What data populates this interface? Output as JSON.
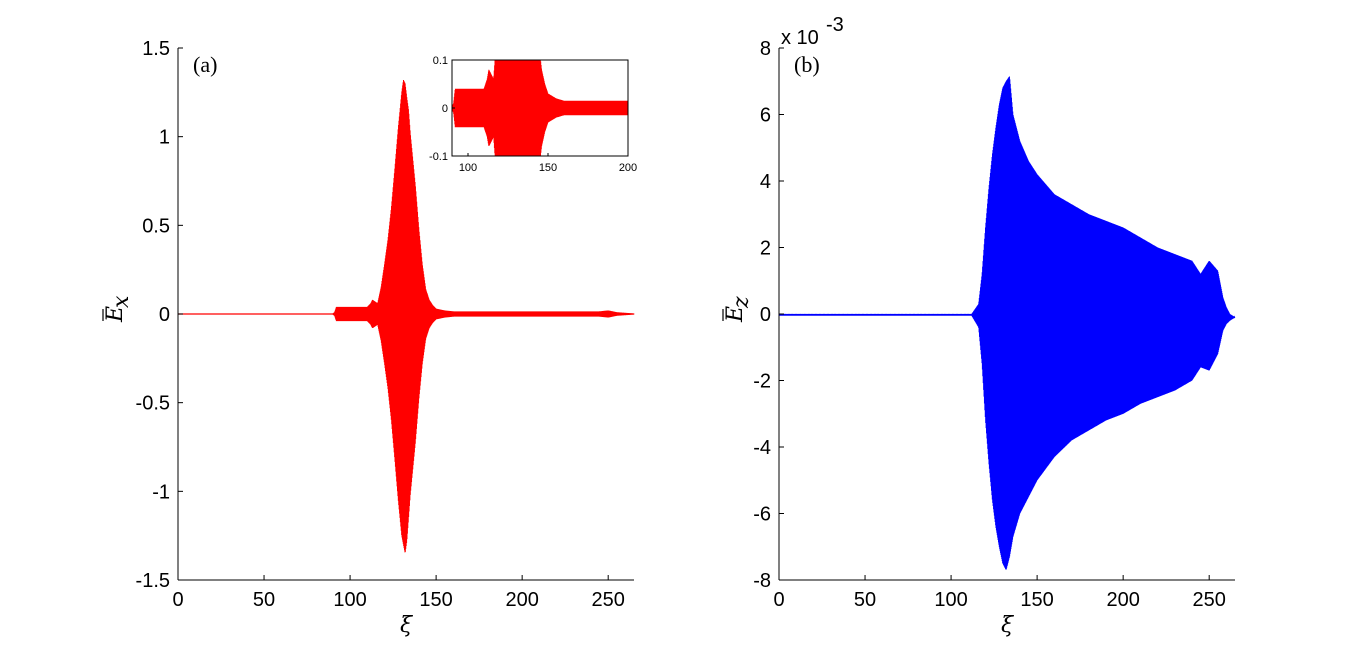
{
  "chart_data": [
    {
      "type": "line",
      "panel_label": "(a)",
      "xlabel": "ξ",
      "ylabel_base": "E",
      "ylabel_sub": "x",
      "xlim": [
        0,
        265
      ],
      "ylim": [
        -1.5,
        1.5
      ],
      "xticks": [
        0,
        50,
        100,
        150,
        200,
        250
      ],
      "yticks": [
        -1.5,
        -1,
        -0.5,
        0,
        0.5,
        1,
        1.5
      ],
      "ytick_labels": [
        "-1.5",
        "-1",
        "-0.5",
        "0",
        "0.5",
        "1",
        "1.5"
      ],
      "color": "#ff0000",
      "envelope": {
        "x": [
          0,
          90,
          91,
          92,
          110,
          112,
          113,
          116,
          118,
          120,
          122,
          124,
          126,
          128,
          130,
          131,
          132,
          133,
          134,
          135,
          136,
          138,
          140,
          142,
          144,
          146,
          148,
          150,
          155,
          160,
          200,
          245,
          250,
          255,
          265
        ],
        "ymax": [
          0.003,
          0.003,
          0.01,
          0.04,
          0.04,
          0.06,
          0.08,
          0.06,
          0.15,
          0.28,
          0.42,
          0.6,
          0.82,
          1.05,
          1.25,
          1.32,
          1.3,
          1.22,
          1.15,
          1.02,
          0.92,
          0.72,
          0.48,
          0.28,
          0.14,
          0.08,
          0.05,
          0.03,
          0.02,
          0.015,
          0.015,
          0.015,
          0.02,
          0.01,
          0.003
        ],
        "ymin": [
          -0.003,
          -0.003,
          -0.01,
          -0.04,
          -0.04,
          -0.06,
          -0.08,
          -0.06,
          -0.15,
          -0.28,
          -0.42,
          -0.6,
          -0.82,
          -1.05,
          -1.25,
          -1.3,
          -1.35,
          -1.28,
          -1.15,
          -1.02,
          -0.92,
          -0.72,
          -0.48,
          -0.28,
          -0.14,
          -0.08,
          -0.05,
          -0.03,
          -0.02,
          -0.015,
          -0.015,
          -0.015,
          -0.02,
          -0.01,
          -0.003
        ]
      },
      "inset": {
        "xlim": [
          90,
          200
        ],
        "ylim": [
          -0.1,
          0.1
        ],
        "xticks": [
          100,
          150,
          200
        ],
        "yticks": [
          -0.1,
          0,
          0.1
        ],
        "ytick_labels": [
          "-0.1",
          "0",
          "0.1"
        ]
      }
    },
    {
      "type": "line",
      "panel_label": "(b)",
      "xlabel": "ξ",
      "ylabel_base": "E",
      "ylabel_sub": "z",
      "scale_note": "x 10",
      "scale_exp": "-3",
      "xlim": [
        0,
        265
      ],
      "ylim": [
        -8,
        8
      ],
      "xticks": [
        0,
        50,
        100,
        150,
        200,
        250
      ],
      "yticks": [
        -8,
        -6,
        -4,
        -2,
        0,
        2,
        4,
        6,
        8
      ],
      "ytick_labels": [
        "-8",
        "-6",
        "-4",
        "-2",
        "0",
        "2",
        "4",
        "6",
        "8"
      ],
      "color": "#0000ff",
      "envelope": {
        "x": [
          0,
          100,
          112,
          116,
          118,
          120,
          122,
          124,
          126,
          128,
          130,
          132,
          134,
          136,
          140,
          145,
          150,
          160,
          170,
          180,
          190,
          200,
          210,
          220,
          230,
          240,
          245,
          250,
          255,
          258,
          260,
          262,
          265
        ],
        "ymax": [
          0.0,
          0.0,
          0.0,
          0.3,
          1.2,
          2.6,
          3.8,
          4.8,
          5.6,
          6.3,
          6.8,
          7.0,
          7.15,
          6.0,
          5.2,
          4.6,
          4.2,
          3.6,
          3.3,
          3.0,
          2.8,
          2.6,
          2.3,
          2.0,
          1.8,
          1.6,
          1.2,
          1.6,
          1.3,
          0.5,
          0.2,
          0.0,
          -0.1
        ],
        "ymin": [
          -0.05,
          -0.05,
          -0.05,
          -0.4,
          -1.5,
          -3.2,
          -4.5,
          -5.6,
          -6.4,
          -7.0,
          -7.5,
          -7.7,
          -7.3,
          -6.7,
          -6.0,
          -5.5,
          -5.0,
          -4.3,
          -3.8,
          -3.5,
          -3.2,
          -3.0,
          -2.7,
          -2.5,
          -2.3,
          -2.0,
          -1.6,
          -1.7,
          -1.2,
          -0.5,
          -0.3,
          -0.2,
          -0.1
        ]
      }
    }
  ]
}
